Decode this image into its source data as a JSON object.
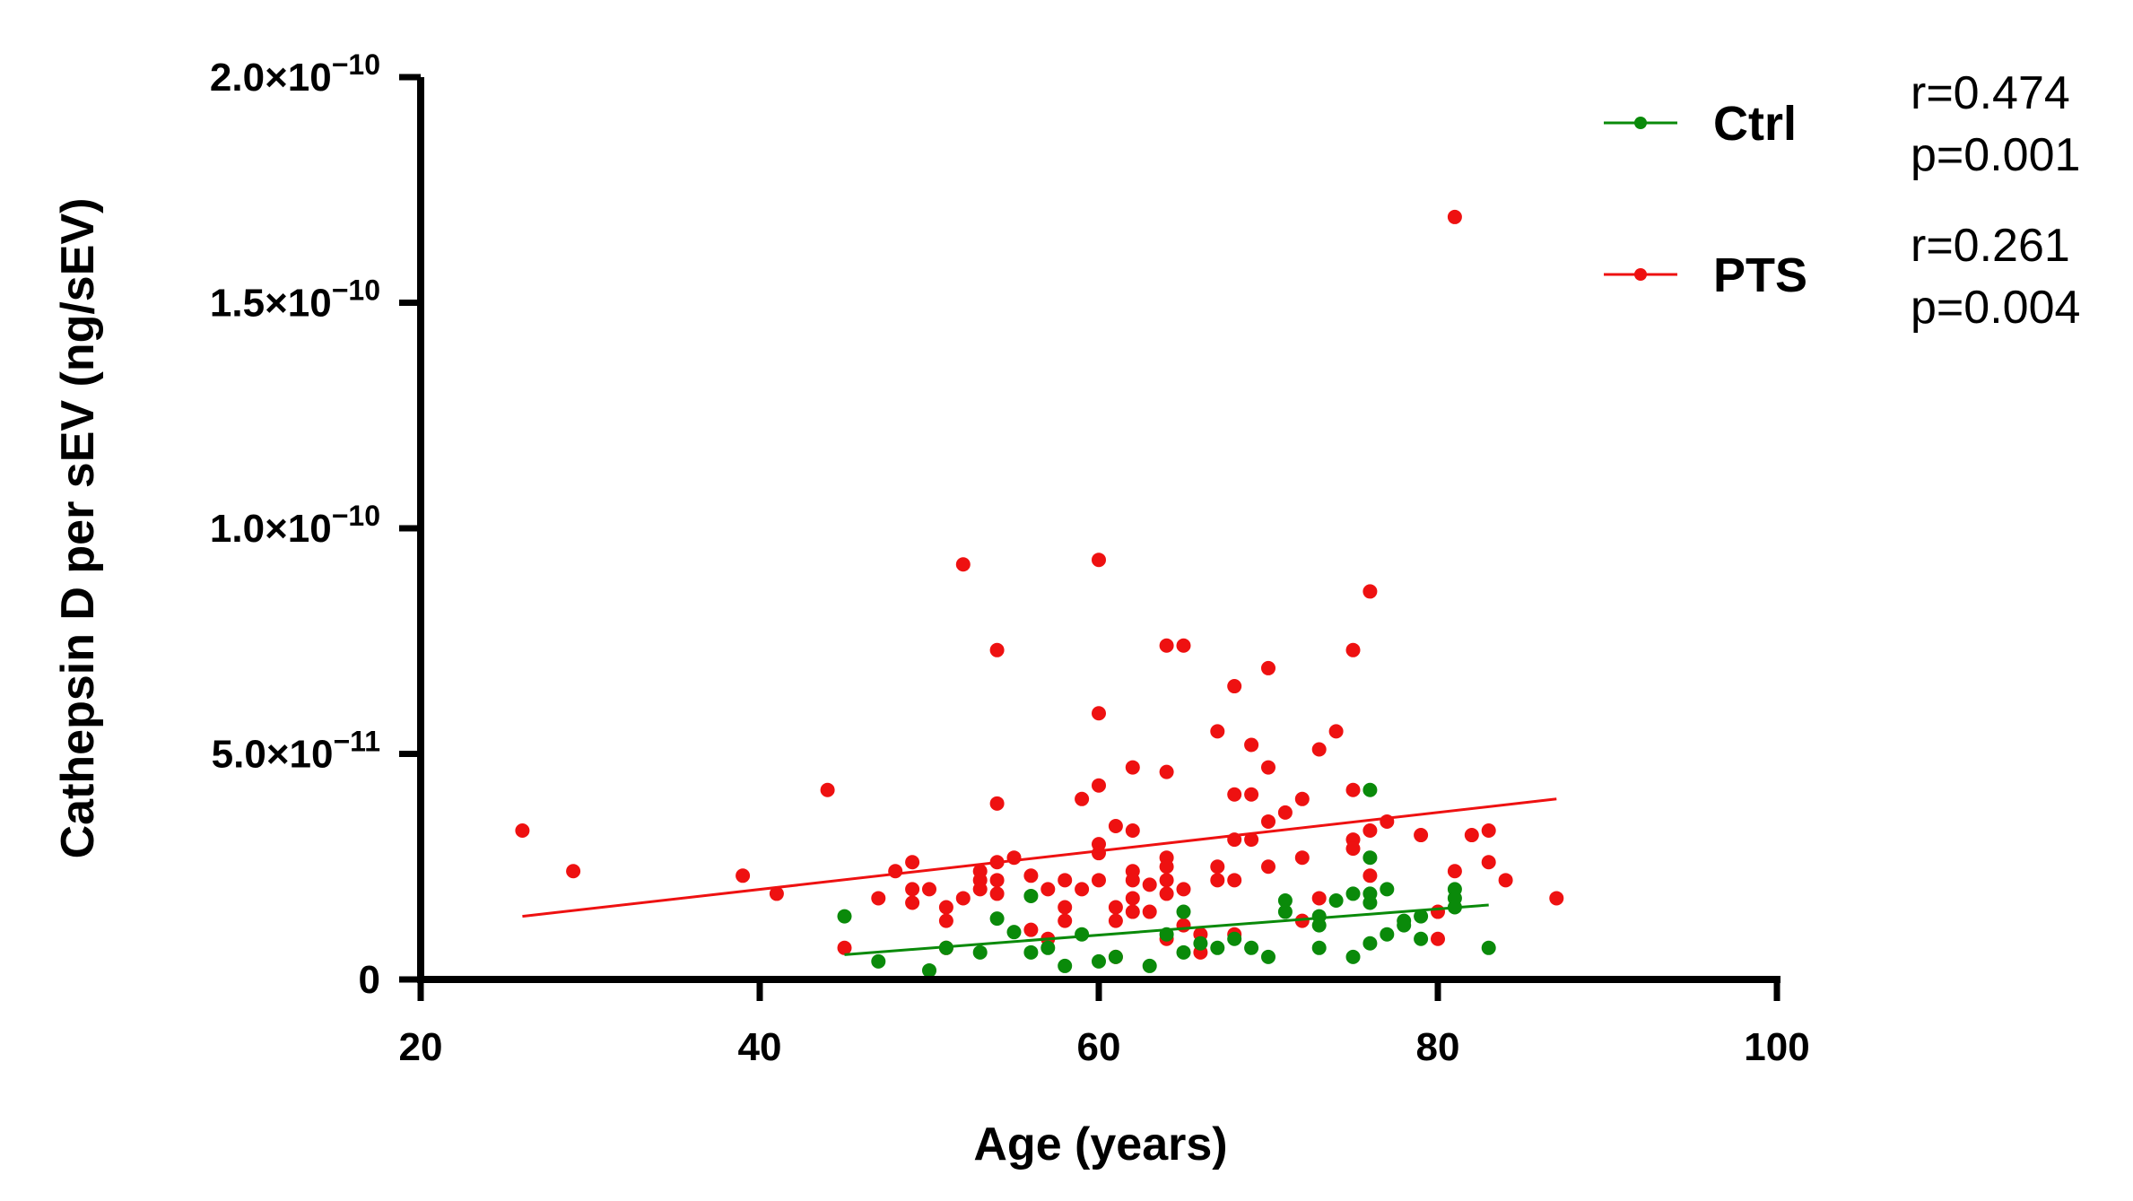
{
  "chart_data": {
    "type": "scatter",
    "title": "",
    "xlabel": "Age (years)",
    "ylabel": "Cathepsin D per sEV (ng/sEV)",
    "xlim": [
      20,
      100
    ],
    "ylim": [
      0,
      2e-10
    ],
    "xticks": [
      20,
      40,
      60,
      80,
      100
    ],
    "xtick_labels": [
      "20",
      "40",
      "60",
      "80",
      "100"
    ],
    "yticks": [
      0,
      5e-11,
      1e-10,
      1.5e-10,
      2e-10
    ],
    "ytick_labels": [
      {
        "mantissa": "0",
        "exponent": ""
      },
      {
        "mantissa": "5.0×10",
        "exponent": "−11"
      },
      {
        "mantissa": "1.0×10",
        "exponent": "−10"
      },
      {
        "mantissa": "1.5×10",
        "exponent": "−10"
      },
      {
        "mantissa": "2.0×10",
        "exponent": "−10"
      }
    ],
    "legend_position": "top-right",
    "series": [
      {
        "name": "Ctrl",
        "color": "#0a8a0a",
        "stats": {
          "r": "r=0.474",
          "p": "p=0.001"
        },
        "trendline": {
          "x": [
            45,
            83
          ],
          "y": [
            5.5e-12,
            1.65e-11
          ]
        },
        "points": [
          [
            45,
            1.4e-11
          ],
          [
            47,
            4e-12
          ],
          [
            50,
            2e-12
          ],
          [
            51,
            7e-12
          ],
          [
            53,
            6e-12
          ],
          [
            54,
            1.35e-11
          ],
          [
            55,
            1.05e-11
          ],
          [
            56,
            1.85e-11
          ],
          [
            56,
            6e-12
          ],
          [
            57,
            7e-12
          ],
          [
            58,
            3e-12
          ],
          [
            59,
            1e-11
          ],
          [
            60,
            4e-12
          ],
          [
            61,
            5e-12
          ],
          [
            63,
            3e-12
          ],
          [
            64,
            1e-11
          ],
          [
            65,
            1.5e-11
          ],
          [
            65,
            6e-12
          ],
          [
            66,
            8e-12
          ],
          [
            67,
            7e-12
          ],
          [
            68,
            9e-12
          ],
          [
            69,
            7e-12
          ],
          [
            70,
            5e-12
          ],
          [
            71,
            1.75e-11
          ],
          [
            71,
            1.5e-11
          ],
          [
            73,
            1.4e-11
          ],
          [
            73,
            1.2e-11
          ],
          [
            73,
            7e-12
          ],
          [
            74,
            1.75e-11
          ],
          [
            75,
            1.9e-11
          ],
          [
            75,
            5e-12
          ],
          [
            76,
            4.2e-11
          ],
          [
            76,
            2.7e-11
          ],
          [
            76,
            1.9e-11
          ],
          [
            76,
            1.7e-11
          ],
          [
            76,
            8e-12
          ],
          [
            77,
            2e-11
          ],
          [
            77,
            1e-11
          ],
          [
            78,
            1.2e-11
          ],
          [
            78,
            1.3e-11
          ],
          [
            79,
            1.4e-11
          ],
          [
            79,
            9e-12
          ],
          [
            81,
            2e-11
          ],
          [
            81,
            1.8e-11
          ],
          [
            81,
            1.6e-11
          ],
          [
            83,
            7e-12
          ]
        ]
      },
      {
        "name": "PTS",
        "color": "#ee1111",
        "stats": {
          "r": "r=0.261",
          "p": "p=0.004"
        },
        "trendline": {
          "x": [
            26,
            87
          ],
          "y": [
            1.4e-11,
            4e-11
          ]
        },
        "points": [
          [
            26,
            3.3e-11
          ],
          [
            29,
            2.4e-11
          ],
          [
            39,
            2.3e-11
          ],
          [
            41,
            1.9e-11
          ],
          [
            44,
            4.2e-11
          ],
          [
            45,
            7e-12
          ],
          [
            47,
            1.8e-11
          ],
          [
            48,
            2.4e-11
          ],
          [
            49,
            2.6e-11
          ],
          [
            49,
            2e-11
          ],
          [
            49,
            1.7e-11
          ],
          [
            50,
            2e-11
          ],
          [
            51,
            1.6e-11
          ],
          [
            51,
            1.3e-11
          ],
          [
            51,
            7e-12
          ],
          [
            52,
            1.8e-11
          ],
          [
            52,
            9.2e-11
          ],
          [
            53,
            2.4e-11
          ],
          [
            53,
            2.2e-11
          ],
          [
            53,
            2e-11
          ],
          [
            54,
            7.3e-11
          ],
          [
            54,
            3.9e-11
          ],
          [
            54,
            2.6e-11
          ],
          [
            54,
            2.2e-11
          ],
          [
            54,
            1.9e-11
          ],
          [
            55,
            2.7e-11
          ],
          [
            56,
            2.3e-11
          ],
          [
            56,
            1.1e-11
          ],
          [
            57,
            2e-11
          ],
          [
            57,
            9e-12
          ],
          [
            58,
            2.2e-11
          ],
          [
            58,
            1.6e-11
          ],
          [
            58,
            1.3e-11
          ],
          [
            59,
            4e-11
          ],
          [
            59,
            2e-11
          ],
          [
            60,
            9.3e-11
          ],
          [
            60,
            5.9e-11
          ],
          [
            60,
            4.3e-11
          ],
          [
            60,
            3e-11
          ],
          [
            60,
            2.8e-11
          ],
          [
            60,
            2.2e-11
          ],
          [
            61,
            3.4e-11
          ],
          [
            61,
            1.6e-11
          ],
          [
            61,
            1.3e-11
          ],
          [
            61,
            5e-12
          ],
          [
            62,
            4.7e-11
          ],
          [
            62,
            3.3e-11
          ],
          [
            62,
            2.4e-11
          ],
          [
            62,
            2.2e-11
          ],
          [
            62,
            1.8e-11
          ],
          [
            62,
            1.5e-11
          ],
          [
            63,
            2.1e-11
          ],
          [
            63,
            1.5e-11
          ],
          [
            64,
            7.4e-11
          ],
          [
            64,
            4.6e-11
          ],
          [
            64,
            2.7e-11
          ],
          [
            64,
            2.5e-11
          ],
          [
            64,
            2.2e-11
          ],
          [
            64,
            1.9e-11
          ],
          [
            64,
            9e-12
          ],
          [
            65,
            7.4e-11
          ],
          [
            65,
            2e-11
          ],
          [
            65,
            1.2e-11
          ],
          [
            66,
            1e-11
          ],
          [
            66,
            6e-12
          ],
          [
            67,
            5.5e-11
          ],
          [
            67,
            2.5e-11
          ],
          [
            67,
            2.2e-11
          ],
          [
            68,
            6.5e-11
          ],
          [
            68,
            4.1e-11
          ],
          [
            68,
            3.1e-11
          ],
          [
            68,
            2.2e-11
          ],
          [
            68,
            1e-11
          ],
          [
            69,
            5.2e-11
          ],
          [
            69,
            4.1e-11
          ],
          [
            69,
            3.1e-11
          ],
          [
            70,
            6.9e-11
          ],
          [
            70,
            4.7e-11
          ],
          [
            70,
            3.5e-11
          ],
          [
            70,
            2.5e-11
          ],
          [
            71,
            3.7e-11
          ],
          [
            72,
            4e-11
          ],
          [
            72,
            2.7e-11
          ],
          [
            72,
            1.3e-11
          ],
          [
            73,
            5.1e-11
          ],
          [
            73,
            1.8e-11
          ],
          [
            74,
            5.5e-11
          ],
          [
            75,
            7.3e-11
          ],
          [
            75,
            4.2e-11
          ],
          [
            75,
            3.1e-11
          ],
          [
            75,
            2.9e-11
          ],
          [
            76,
            8.6e-11
          ],
          [
            76,
            3.3e-11
          ],
          [
            76,
            2.3e-11
          ],
          [
            77,
            3.5e-11
          ],
          [
            79,
            3.2e-11
          ],
          [
            80,
            1.5e-11
          ],
          [
            80,
            9e-12
          ],
          [
            81,
            1.69e-10
          ],
          [
            81,
            2.4e-11
          ],
          [
            82,
            3.2e-11
          ],
          [
            83,
            3.3e-11
          ],
          [
            83,
            2.6e-11
          ],
          [
            84,
            2.2e-11
          ],
          [
            87,
            1.8e-11
          ]
        ]
      }
    ]
  }
}
